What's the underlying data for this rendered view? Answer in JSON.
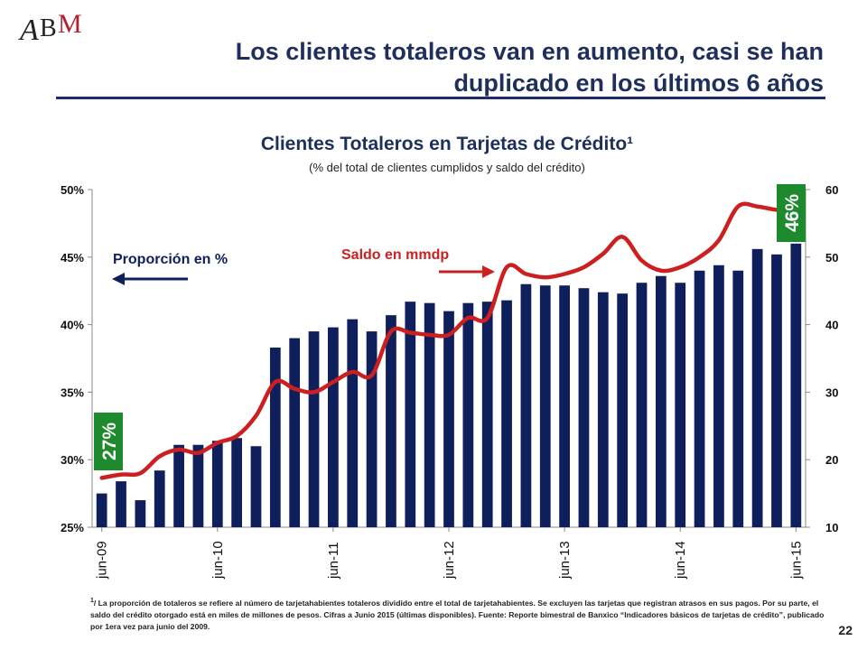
{
  "logo": {
    "text": "ABM"
  },
  "slide": {
    "title_line1": "Los clientes totaleros van en aumento, casi se han",
    "title_line2": "duplicado en los últimos 6 años",
    "page_number": "22"
  },
  "footnote": {
    "marker": "1",
    "text": "/ La proporción de totaleros se refiere al número de tarjetahabientes totaleros dividido entre el total de tarjetahabientes. Se excluyen las tarjetas que registran atrasos en sus pagos. Por su parte, el saldo del crédito otorgado está en miles de millones de pesos. Cifras a Junio 2015 (últimas disponibles). Fuente: Reporte bimestral de Banxico “Indicadores básicos de tarjetas de crédito”, publicado por 1era vez para junio del 2009."
  },
  "colors": {
    "bar": "#0f1f5c",
    "line": "#cc1f1f",
    "badge": "#1e8a2e",
    "title": "#1f2f5c"
  },
  "chart_data": {
    "type": "bar",
    "title": "Clientes Totaleros en Tarjetas de Crédito¹",
    "subtitle": "(% del total de clientes cumplidos y saldo del crédito)",
    "x_tick_labels": [
      "jun-09",
      "jun-10",
      "jun-11",
      "jun-12",
      "jun-13",
      "jun-14",
      "jun-15"
    ],
    "y_left": {
      "ticks": [
        "25%",
        "30%",
        "35%",
        "40%",
        "45%",
        "50%"
      ],
      "range": [
        25,
        50
      ]
    },
    "y_right": {
      "ticks": [
        "10",
        "20",
        "30",
        "40",
        "50",
        "60"
      ],
      "range": [
        10,
        60
      ]
    },
    "grid": false,
    "series": [
      {
        "type": "bar",
        "axis": "left",
        "values": [
          27.5,
          28.4,
          27.0,
          29.2,
          31.1,
          31.1,
          31.4,
          31.6,
          31.0,
          38.3,
          39.0,
          39.5,
          39.8,
          40.4,
          39.5,
          40.7,
          41.7,
          41.6,
          41.0,
          41.6,
          41.7,
          41.8,
          43.0,
          42.9,
          42.9,
          42.7,
          42.4,
          42.3,
          43.1,
          43.6,
          43.1,
          44.0,
          44.4,
          44.0,
          45.6,
          45.2,
          46.0
        ]
      },
      {
        "type": "line",
        "axis": "right",
        "values": [
          17.3,
          17.8,
          18.0,
          20.5,
          21.5,
          21.0,
          22.5,
          23.5,
          26.5,
          31.5,
          30.5,
          30.0,
          31.5,
          33.0,
          32.5,
          39.0,
          38.8,
          38.5,
          38.5,
          41.0,
          41.0,
          48.5,
          47.5,
          47.0,
          47.5,
          48.5,
          50.5,
          53.0,
          49.5,
          48.0,
          48.5,
          50.0,
          52.5,
          57.5,
          57.5,
          57.0,
          57.0
        ]
      }
    ],
    "annotations": {
      "left_axis_label": "Proporción en %",
      "right_axis_label": "Saldo en mmdp",
      "start_badge": "27%",
      "end_badge": "46%"
    }
  }
}
